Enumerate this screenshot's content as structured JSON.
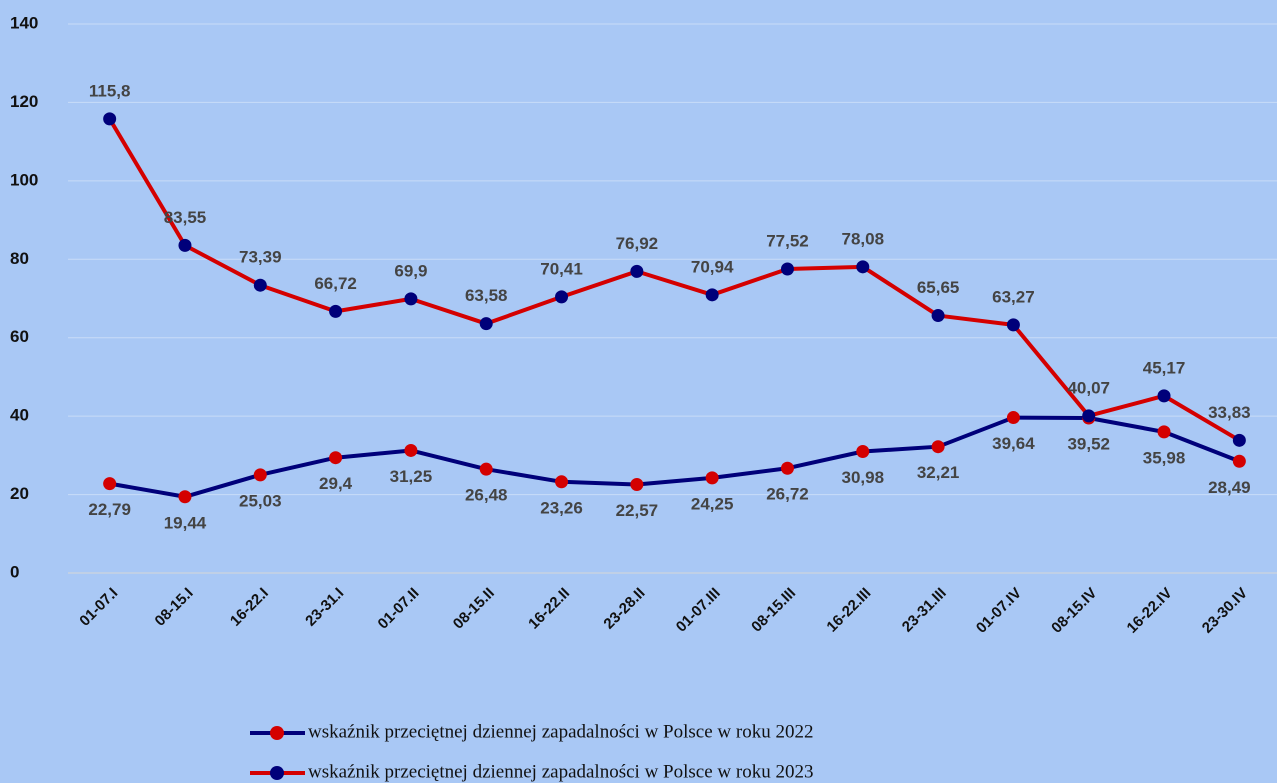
{
  "chart_data": {
    "type": "line",
    "categories": [
      "01-07.I",
      "08-15.I",
      "16-22.I",
      "23-31.I",
      "01-07.II",
      "08-15.II",
      "16-22.II",
      "23-28.II",
      "01-07.III",
      "08-15.III",
      "16-22.III",
      "23-31.III",
      "01-07.IV",
      "08-15.IV",
      "16-22.IV",
      "23-30.IV"
    ],
    "series": [
      {
        "name": "wskaźnik przeciętnej dziennej zapadalności w Polsce w roku 2022",
        "color": "#00007a",
        "marker_color": "#d40000",
        "values": [
          22.79,
          19.44,
          25.03,
          29.4,
          31.25,
          26.48,
          23.26,
          22.57,
          24.25,
          26.72,
          30.98,
          32.21,
          39.64,
          39.52,
          35.98,
          28.49
        ],
        "value_labels": [
          "22,79",
          "19,44",
          "25,03",
          "29,4",
          "31,25",
          "26,48",
          "23,26",
          "22,57",
          "24,25",
          "26,72",
          "30,98",
          "32,21",
          "39,64",
          "39,52",
          "35,98",
          "28,49"
        ]
      },
      {
        "name": "wskaźnik przeciętnej dziennej zapadalności w Polsce w roku 2023",
        "color": "#d40000",
        "marker_color": "#00007a",
        "values": [
          115.8,
          83.55,
          73.39,
          66.72,
          69.9,
          63.58,
          70.41,
          76.92,
          70.94,
          77.52,
          78.08,
          65.65,
          63.27,
          40.07,
          45.17,
          33.83
        ],
        "value_labels": [
          "115,8",
          "83,55",
          "73,39",
          "66,72",
          "69,9",
          "63,58",
          "70,41",
          "76,92",
          "70,94",
          "77,52",
          "78,08",
          "65,65",
          "63,27",
          "40,07",
          "45,17",
          "33,83"
        ]
      }
    ],
    "ylim": [
      0,
      140
    ],
    "yticks": [
      0,
      20,
      40,
      60,
      80,
      100,
      120,
      140
    ],
    "grid": true,
    "legend": "bottom"
  }
}
